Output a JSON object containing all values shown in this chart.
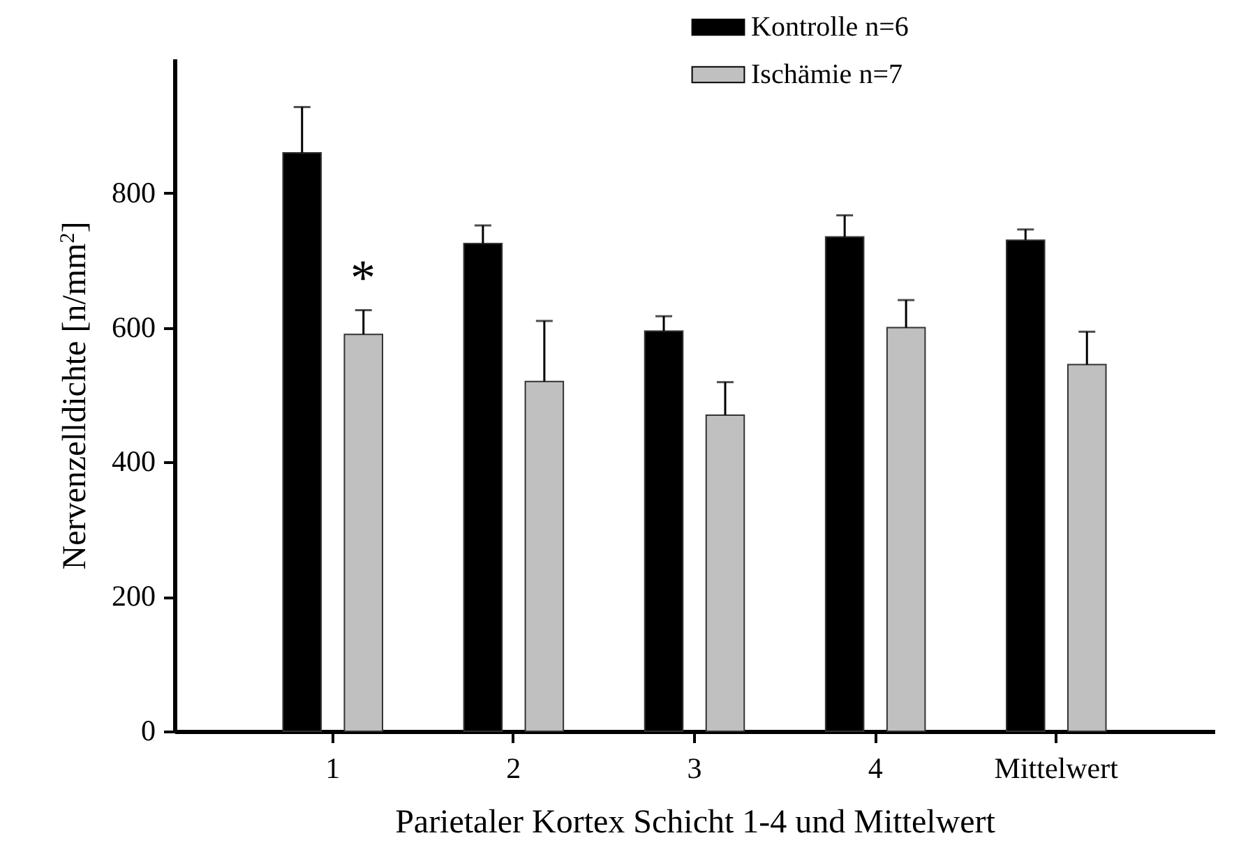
{
  "chart_data": {
    "type": "bar",
    "xlabel": "Parietaler Kortex Schicht 1-4 und Mittelwert",
    "ylabel": "Nervenzelldichte [n/mm$^{2}$]",
    "categories": [
      "1",
      "2",
      "3",
      "4",
      "Mittelwert"
    ],
    "series": [
      {
        "name": "Kontrolle n=6",
        "color": "#000000",
        "values": [
          860,
          725,
          595,
          735,
          730
        ],
        "errors": [
          [
            860,
            928
          ],
          [
            725,
            752
          ],
          [
            595,
            617
          ],
          [
            735,
            767
          ],
          [
            730,
            746
          ]
        ]
      },
      {
        "name": "Ischämie n=7",
        "color": "#c0c0c0",
        "values": [
          590,
          520,
          470,
          600,
          545
        ],
        "errors": [
          [
            590,
            626
          ],
          [
            520,
            610
          ],
          [
            470,
            519
          ],
          [
            600,
            641
          ],
          [
            545,
            594
          ]
        ]
      }
    ],
    "ylim": [
      0,
      1000
    ],
    "yticks": [
      0,
      200,
      400,
      600,
      800
    ],
    "grid": false,
    "legend": "top right",
    "annotations": [
      "*"
    ]
  }
}
